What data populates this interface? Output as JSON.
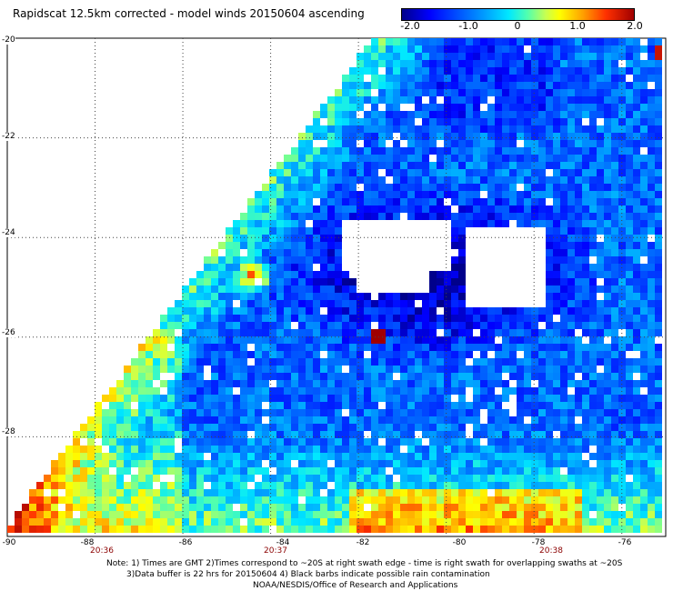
{
  "title": "Rapidscat 12.5km corrected - model winds 20150604 ascending",
  "colorbar": {
    "ticks": [
      "-2.0",
      "-1.0",
      "0",
      "1.0",
      "2.0"
    ],
    "min": -2.0,
    "max": 2.0
  },
  "axes": {
    "lon_labels": [
      "-90",
      "-88",
      "-86",
      "-84",
      "-82",
      "-80",
      "-78",
      "-76"
    ],
    "lat_labels": [
      "-20",
      "-22",
      "-24",
      "-26",
      "-28"
    ],
    "lon_range": [
      -90,
      -75
    ],
    "lat_range": [
      -30,
      -20
    ]
  },
  "times": [
    "20:36",
    "20:37",
    "20:38"
  ],
  "notes": {
    "line1": "Note: 1) Times are GMT 2)Times correspond to ~20S at right swath edge - time is right swath for overlapping swaths at ~20S",
    "line2": "3)Data buffer is 22 hrs for 20150604 4) Black barbs indicate possible rain contamination",
    "line3": "NOAA/NESDIS/Office of Research and Applications"
  }
}
